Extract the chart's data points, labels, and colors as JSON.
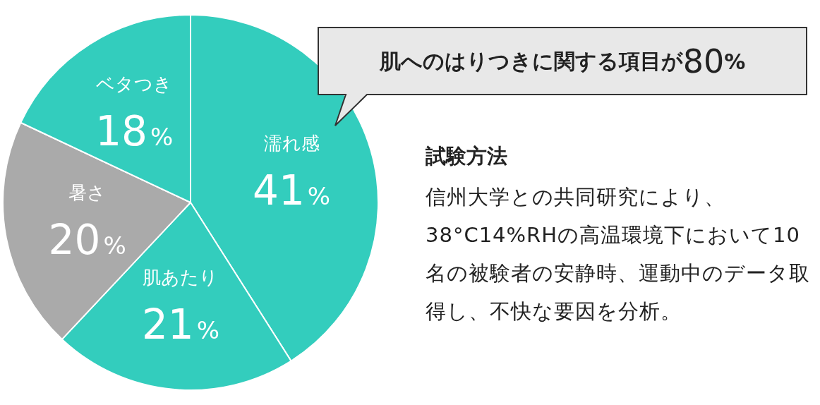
{
  "chart_data": {
    "type": "pie",
    "categories": [
      "濡れ感",
      "肌あたり",
      "暑さ",
      "ベタつき"
    ],
    "values": [
      41,
      21,
      20,
      18
    ],
    "value_labels": [
      "41%",
      "21%",
      "20%",
      "18%"
    ],
    "colors": [
      "#33cdbd",
      "#33cdbd",
      "#aaaaaa",
      "#33cdbd"
    ],
    "legend": false,
    "annotations": [
      "肌へのはりつきに関する項目が80%",
      "試験方法",
      "信州大学との共同研究により、38°C14%RHの高温環境下において10名の被験者の安静時、運動中のデータ取得し、不快な要因を分析。"
    ]
  }
}
